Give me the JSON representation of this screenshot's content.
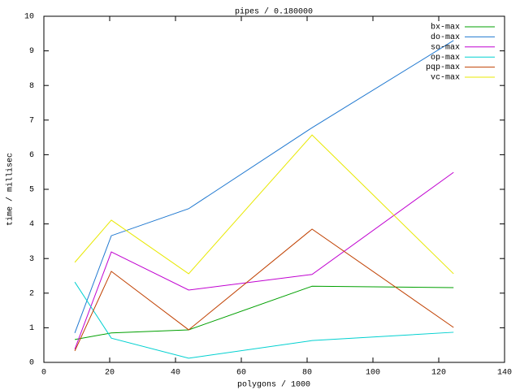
{
  "chart_data": {
    "type": "line",
    "title": "pipes / 0.180000",
    "x_label": "polygons / 1000",
    "y_label": "time / millisec",
    "x": [
      9.4,
      20.5,
      44,
      81.5,
      124.5
    ],
    "series": [
      {
        "name": "bx-max",
        "color": "#00a000",
        "values": [
          0.66,
          0.85,
          0.94,
          2.2,
          2.16
        ]
      },
      {
        "name": "do-max",
        "color": "#1f78d0",
        "values": [
          0.85,
          3.66,
          4.44,
          6.78,
          9.3
        ]
      },
      {
        "name": "so-max",
        "color": "#c000d0",
        "values": [
          0.38,
          3.19,
          2.09,
          2.54,
          5.49
        ]
      },
      {
        "name": "op-max",
        "color": "#00d0d0",
        "values": [
          2.32,
          0.7,
          0.12,
          0.63,
          0.87
        ]
      },
      {
        "name": "pqp-max",
        "color": "#c04000",
        "values": [
          0.33,
          2.63,
          0.94,
          3.85,
          1.01
        ]
      },
      {
        "name": "vc-max",
        "color": "#e8e800",
        "values": [
          2.89,
          4.11,
          2.56,
          6.57,
          2.56
        ]
      }
    ],
    "xlim": [
      0,
      140
    ],
    "xticks": [
      0,
      20,
      40,
      60,
      80,
      100,
      120,
      140
    ],
    "ylim": [
      0,
      10
    ],
    "yticks": [
      0,
      1,
      2,
      3,
      4,
      5,
      6,
      7,
      8,
      9,
      10
    ],
    "grid": false,
    "legend": "top-right"
  }
}
